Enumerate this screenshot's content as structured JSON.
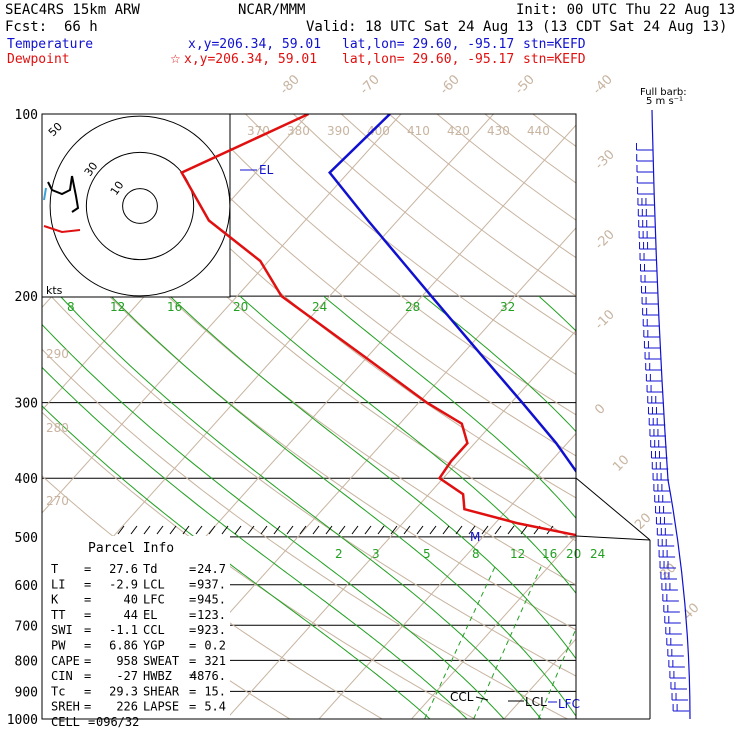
{
  "header": {
    "model": "SEAC4RS 15km ARW",
    "org": "NCAR/MMM",
    "init": "Init: 00 UTC Thu 22 Aug 13",
    "fcst_label": "Fcst:",
    "fcst_value": "66 h",
    "valid": "Valid: 18 UTC Sat 24 Aug 13 (13 CDT Sat 24 Aug 13)",
    "temp_label": "Temperature",
    "temp_xy": "x,y=206.34, 59.01",
    "temp_latlon": "lat,lon= 29.60, -95.17",
    "temp_stn": "stn=KEFD",
    "dew_label": "Dewpoint",
    "dew_xy": "x,y=206.34, 59.01",
    "dew_latlon": "lat,lon= 29.60, -95.17",
    "dew_stn": "stn=KEFD"
  },
  "colors": {
    "temperature": "#1010d0",
    "dewpoint": "#e01010",
    "dry_adiabat": "#c8b4a0",
    "moist_adiabat": "#22a022",
    "hodo_blue": "#3aa0d8"
  },
  "chart_data": {
    "type": "line",
    "title": "Skew-T log-P sounding",
    "pressure_levels": [
      "100",
      "200",
      "300",
      "400",
      "500",
      "600",
      "700",
      "800",
      "900",
      "1000"
    ],
    "series": [
      {
        "name": "Temperature",
        "pressure": [
          1000,
          975,
          950,
          925,
          900,
          850,
          800,
          750,
          700,
          650,
          600,
          550,
          500,
          450,
          400,
          350,
          300,
          250,
          200,
          175,
          150,
          125,
          100
        ],
        "temperature": [
          27.6,
          24.7,
          22.4,
          20.3,
          19.6,
          16.4,
          13.2,
          10.2,
          7.0,
          3.4,
          -0.3,
          -4.0,
          -7.6,
          -10.4,
          -15.1,
          -21.2,
          -28.8,
          -37.9,
          -49.0,
          -55.6,
          -63.2,
          -72.0,
          -71.2
        ]
      },
      {
        "name": "Dewpoint",
        "pressure": [
          1000,
          975,
          950,
          925,
          900,
          850,
          800,
          750,
          700,
          650,
          600,
          550,
          500,
          475,
          450,
          425,
          400,
          375,
          350,
          325,
          300,
          250,
          200,
          175,
          150,
          125,
          100
        ],
        "dewpoint": [
          24.7,
          23.6,
          22.8,
          22.4,
          19.7,
          16.6,
          13.4,
          10.4,
          7.0,
          3.0,
          -0.9,
          -4.2,
          -9.0,
          -17.5,
          -24.7,
          -26.3,
          -30.4,
          -30.8,
          -30.8,
          -33.3,
          -39.1,
          -50.8,
          -65.2,
          -70.9,
          -80.4,
          -88.0,
          -80.0
        ]
      }
    ],
    "isotherm_labels": [
      "-80",
      "-70",
      "-60",
      "-50",
      "-40",
      "-30",
      "-20",
      "-10",
      "0",
      "10",
      "20",
      "30",
      "40"
    ],
    "isotherm_values": [
      -80,
      -70,
      -60,
      -50,
      -40,
      -30,
      -20,
      -10,
      0,
      10,
      20,
      30,
      40
    ],
    "theta_labels": [
      "370",
      "380",
      "390",
      "400",
      "410",
      "420",
      "430",
      "440"
    ],
    "theta_left_labels": [
      "290",
      "280",
      "270"
    ],
    "theta_e_labels": [
      "8",
      "12",
      "16",
      "20",
      "24",
      "28",
      "32"
    ],
    "mixing_ratio_labels": [
      "2",
      "3",
      "5",
      "8",
      "12",
      "16",
      "20",
      "24"
    ],
    "mixing_ratio_values": [
      2,
      3,
      5,
      8,
      12,
      16,
      20,
      24
    ],
    "annotations": [
      "EL",
      "M",
      "CCL",
      "LCL",
      "LFC"
    ],
    "hodograph": {
      "label": "kts",
      "ring_labels": [
        "10",
        "30",
        "50"
      ],
      "ring_values": [
        10,
        30,
        50
      ]
    },
    "wind_barb_legend": {
      "line1": "Full barb:",
      "line2": "5 m s⁻¹"
    }
  },
  "parcel_info": {
    "title": "Parcel Info",
    "rows": [
      {
        "k1": "T",
        "v1": "27.6",
        "k2": "Td",
        "v2": "24.7"
      },
      {
        "k1": "LI",
        "v1": "-2.9",
        "k2": "LCL",
        "v2": "937."
      },
      {
        "k1": "K",
        "v1": "40",
        "k2": "LFC",
        "v2": "945."
      },
      {
        "k1": "TT",
        "v1": "44",
        "k2": "EL",
        "v2": "123."
      },
      {
        "k1": "SWI",
        "v1": "-1.1",
        "k2": "CCL",
        "v2": "923."
      },
      {
        "k1": "PW",
        "v1": "6.86",
        "k2": "YGP",
        "v2": "0.2"
      },
      {
        "k1": "CAPE",
        "v1": "958",
        "k2": "SWEAT",
        "v2": "321"
      },
      {
        "k1": "CIN",
        "v1": "-27",
        "k2": "HWBZ",
        "v2": "4876."
      },
      {
        "k1": "Tc",
        "v1": "29.3",
        "k2": "SHEAR",
        "v2": "15."
      },
      {
        "k1": "SREH",
        "v1": "226",
        "k2": "LAPSE",
        "v2": "5.4"
      },
      {
        "k1": "CELL",
        "v1": "096/32",
        "k2": "",
        "v2": ""
      }
    ]
  }
}
